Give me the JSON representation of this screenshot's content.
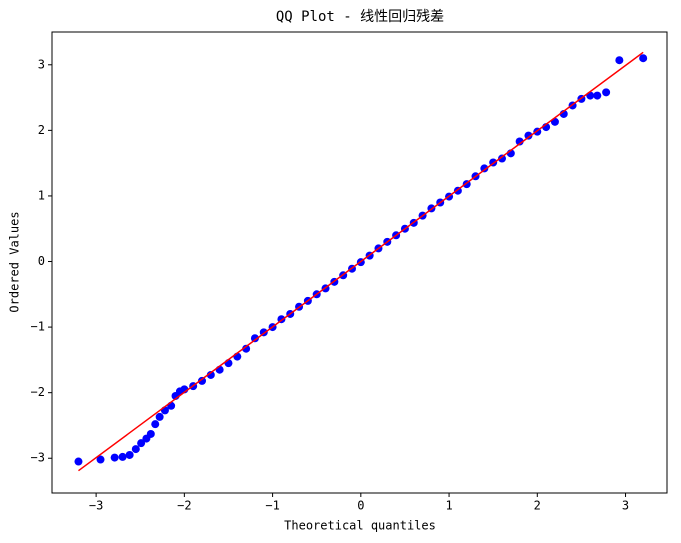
{
  "chart_data": {
    "type": "scatter",
    "title": "QQ Plot - 线性回归残差",
    "x_label": "Theoretical quantiles",
    "y_label": "Ordered Values",
    "xlim": [
      -3.5,
      3.47
    ],
    "ylim": [
      -3.53,
      3.5
    ],
    "xticks": [
      {
        "value": -3,
        "label": "−3"
      },
      {
        "value": -2,
        "label": "−2"
      },
      {
        "value": -1,
        "label": "−1"
      },
      0,
      1,
      2,
      3
    ],
    "yticks": [
      {
        "value": -3,
        "label": "−3"
      },
      {
        "value": -2,
        "label": "−2"
      },
      {
        "value": -1,
        "label": "−1"
      },
      0,
      1,
      2,
      3
    ],
    "points": {
      "color": "#0000ff",
      "x": [
        -3.2,
        -2.95,
        -2.79,
        -2.7,
        -2.62,
        -2.55,
        -2.49,
        -2.43,
        -2.38,
        -2.33,
        -2.28,
        -2.22,
        -2.15,
        -2.1,
        -2.05,
        -2.0,
        -1.9,
        -1.8,
        -1.7,
        -1.6,
        -1.5,
        -1.4,
        -1.3,
        -1.2,
        -1.1,
        -1.0,
        -0.9,
        -0.8,
        -0.7,
        -0.6,
        -0.5,
        -0.4,
        -0.3,
        -0.2,
        -0.1,
        0.0,
        0.1,
        0.2,
        0.3,
        0.4,
        0.5,
        0.6,
        0.7,
        0.8,
        0.9,
        1.0,
        1.1,
        1.2,
        1.3,
        1.4,
        1.5,
        1.6,
        1.7,
        1.8,
        1.9,
        2.0,
        2.1,
        2.2,
        2.3,
        2.4,
        2.5,
        2.6,
        2.68,
        2.78,
        2.93,
        3.2
      ],
      "values": [
        -3.05,
        -3.02,
        -2.99,
        -2.98,
        -2.95,
        -2.86,
        -2.77,
        -2.7,
        -2.63,
        -2.48,
        -2.37,
        -2.27,
        -2.2,
        -2.05,
        -1.98,
        -1.95,
        -1.9,
        -1.82,
        -1.73,
        -1.65,
        -1.55,
        -1.45,
        -1.33,
        -1.17,
        -1.08,
        -1.0,
        -0.88,
        -0.8,
        -0.69,
        -0.6,
        -0.5,
        -0.41,
        -0.31,
        -0.21,
        -0.11,
        -0.01,
        0.09,
        0.2,
        0.3,
        0.4,
        0.5,
        0.59,
        0.7,
        0.81,
        0.9,
        0.99,
        1.08,
        1.18,
        1.3,
        1.42,
        1.51,
        1.57,
        1.65,
        1.83,
        1.92,
        1.98,
        2.05,
        2.13,
        2.25,
        2.38,
        2.48,
        2.53,
        2.53,
        2.58,
        3.07,
        3.1
      ]
    },
    "fit_line": {
      "color": "#ff0000",
      "x": [
        -3.2,
        3.2
      ],
      "values": [
        -3.19,
        3.19
      ]
    }
  }
}
